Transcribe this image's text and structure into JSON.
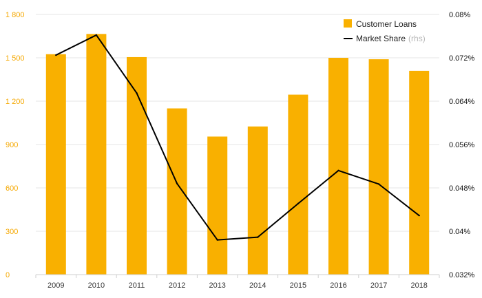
{
  "chart_data": {
    "type": "bar+line",
    "title": "",
    "categories": [
      "2009",
      "2010",
      "2011",
      "2012",
      "2013",
      "2014",
      "2015",
      "2016",
      "2017",
      "2018"
    ],
    "series": [
      {
        "name": "Customer Loans",
        "type": "bar",
        "axis": "left",
        "color": "#F9B000",
        "values": [
          1525,
          1665,
          1505,
          1150,
          955,
          1025,
          1245,
          1500,
          1490,
          1410
        ]
      },
      {
        "name": "Market Share",
        "name_suffix": "(rhs)",
        "type": "line",
        "axis": "right",
        "color": "#000000",
        "values": [
          0.0725,
          0.0762,
          0.0655,
          0.0488,
          0.0384,
          0.0389,
          0.0451,
          0.0512,
          0.0487,
          0.0429
        ]
      }
    ],
    "y_left": {
      "min": 0,
      "max": 1800,
      "ticks": [
        0,
        300,
        600,
        900,
        1200,
        1500,
        1800
      ],
      "tick_labels": [
        "0",
        "300",
        "600",
        "900",
        "1 200",
        "1 500",
        "1 800"
      ]
    },
    "y_right": {
      "min": 0.032,
      "max": 0.08,
      "ticks": [
        0.032,
        0.04,
        0.048,
        0.056,
        0.064,
        0.072,
        0.08
      ],
      "tick_labels": [
        "0.032%",
        "0.04%",
        "0.048%",
        "0.056%",
        "0.064%",
        "0.072%",
        "0.08%"
      ]
    },
    "grid": true,
    "legend": {
      "position": "top-right"
    }
  },
  "colors": {
    "bar": "#F9B000",
    "line": "#000000",
    "left_axis_text": "#F5A800",
    "grid": "#E6E6E6"
  }
}
